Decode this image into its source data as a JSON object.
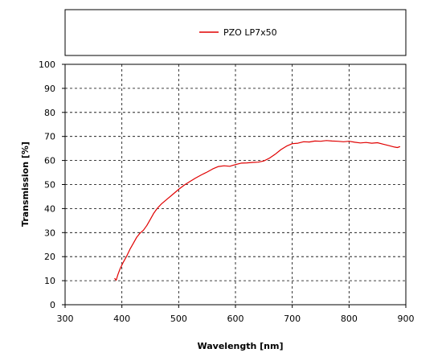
{
  "chart_data": {
    "type": "line",
    "title": "",
    "xlabel": "Wavelength [nm]",
    "ylabel": "Transmission [%]",
    "xlim": [
      300,
      900
    ],
    "ylim": [
      0,
      100
    ],
    "x_ticks": [
      "300",
      "400",
      "500",
      "600",
      "700",
      "800",
      "900"
    ],
    "y_ticks": [
      "0",
      "10",
      "20",
      "30",
      "40",
      "50",
      "60",
      "70",
      "80",
      "90",
      "100"
    ],
    "grid": "dashed",
    "legend_position": "top",
    "series": [
      {
        "name": "PZO LP7x50",
        "color": "#e00000",
        "points": [
          [
            387,
            11
          ],
          [
            390,
            10.2
          ],
          [
            393,
            12.5
          ],
          [
            397,
            15
          ],
          [
            402,
            17.5
          ],
          [
            408,
            20
          ],
          [
            414,
            23
          ],
          [
            420,
            25.5
          ],
          [
            426,
            28
          ],
          [
            432,
            29.8
          ],
          [
            438,
            31
          ],
          [
            444,
            33
          ],
          [
            450,
            35.5
          ],
          [
            456,
            38
          ],
          [
            462,
            40
          ],
          [
            470,
            42
          ],
          [
            480,
            44
          ],
          [
            490,
            46
          ],
          [
            500,
            48
          ],
          [
            510,
            49.8
          ],
          [
            520,
            51.3
          ],
          [
            530,
            52.7
          ],
          [
            540,
            54
          ],
          [
            550,
            55.2
          ],
          [
            560,
            56.5
          ],
          [
            570,
            57.5
          ],
          [
            580,
            57.8
          ],
          [
            590,
            57.6
          ],
          [
            600,
            58.3
          ],
          [
            610,
            58.9
          ],
          [
            620,
            59
          ],
          [
            630,
            59.2
          ],
          [
            640,
            59.3
          ],
          [
            650,
            59.8
          ],
          [
            660,
            61
          ],
          [
            670,
            62.6
          ],
          [
            680,
            64.5
          ],
          [
            690,
            66
          ],
          [
            700,
            67
          ],
          [
            710,
            67.2
          ],
          [
            720,
            67.8
          ],
          [
            730,
            67.7
          ],
          [
            740,
            68.1
          ],
          [
            750,
            68
          ],
          [
            760,
            68.3
          ],
          [
            770,
            68.1
          ],
          [
            780,
            68
          ],
          [
            790,
            67.8
          ],
          [
            800,
            68
          ],
          [
            810,
            67.6
          ],
          [
            820,
            67.3
          ],
          [
            830,
            67.5
          ],
          [
            840,
            67.2
          ],
          [
            850,
            67.4
          ],
          [
            860,
            66.8
          ],
          [
            870,
            66.2
          ],
          [
            880,
            65.6
          ],
          [
            885,
            65.4
          ],
          [
            890,
            65.8
          ]
        ]
      }
    ]
  }
}
